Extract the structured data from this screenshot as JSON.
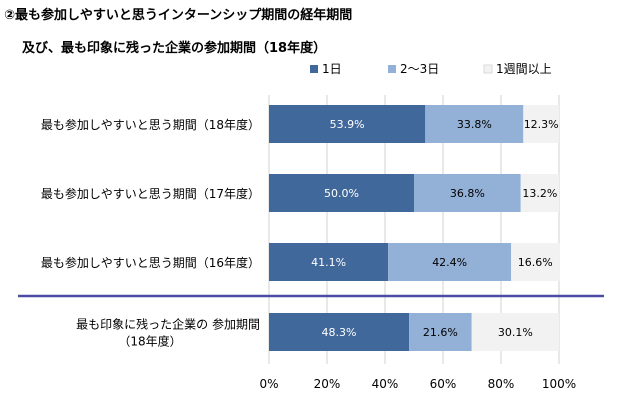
{
  "title": "②最も参加しやすいと思うインターンシップ期間の経年期間",
  "subtitle": "及び、最も印象に残った企業の参加期間（18年度）",
  "chart_data": {
    "type": "bar",
    "orientation": "horizontal",
    "stacked": true,
    "percent_stacked": true,
    "categories": [
      [
        "最も参加しやすいと思う期間（18年度）"
      ],
      [
        "最も参加しやすいと思う期間（17年度）"
      ],
      [
        "最も参加しやすいと思う期間（16年度）"
      ],
      [
        "最も印象に残った企業の 参加期間",
        "（18年度）"
      ]
    ],
    "series": [
      {
        "name": "1日",
        "values": [
          53.9,
          50.0,
          41.1,
          48.3
        ],
        "labels": [
          "53.9%",
          "50.0%",
          "41.1%",
          "48.3%"
        ],
        "color": "#41689b",
        "label_color": "#ffffff"
      },
      {
        "name": "2～3日",
        "values": [
          33.8,
          36.8,
          42.4,
          21.6
        ],
        "labels": [
          "33.8%",
          "36.8%",
          "42.4%",
          "21.6%"
        ],
        "color": "#93b1d7",
        "label_color": "#000000"
      },
      {
        "name": "1週間以上",
        "values": [
          12.3,
          13.2,
          16.6,
          30.1
        ],
        "labels": [
          "12.3%",
          "13.2%",
          "16.6%",
          "30.1%"
        ],
        "color": "#f2f2f2",
        "label_color": "#000000"
      }
    ],
    "x_ticks": [
      "0%",
      "20%",
      "40%",
      "60%",
      "80%",
      "100%"
    ],
    "xlim": [
      0,
      100
    ],
    "legend_position": "top",
    "divider_color": "#4b4ba6",
    "gridlines": true
  }
}
